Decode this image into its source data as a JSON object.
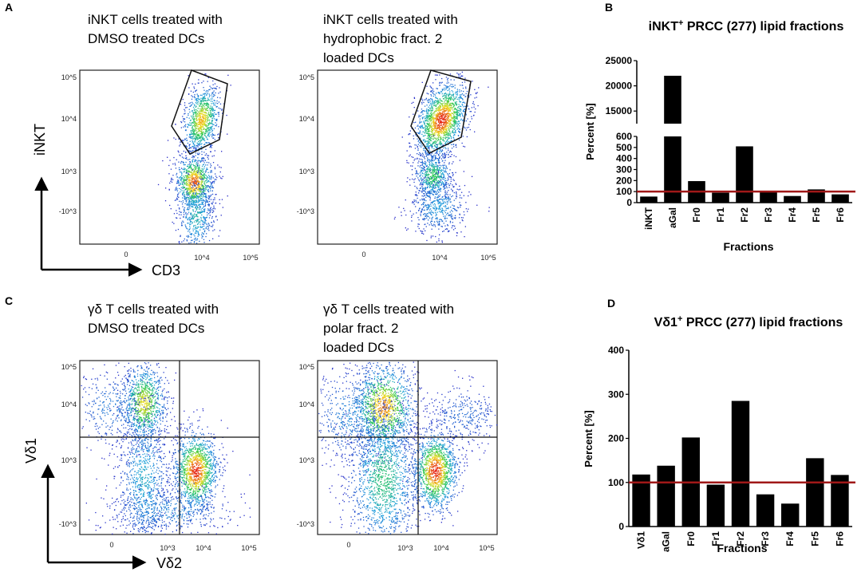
{
  "panels": {
    "a": {
      "letter": "A",
      "left_title": [
        "iNKT cells treated with",
        "DMSO treated DCs"
      ],
      "right_title": [
        "iNKT cells treated with",
        "hydrophobic fract. 2",
        "loaded DCs"
      ],
      "y_axis_label": "iNKT",
      "x_axis_label": "CD3",
      "y_ticks": [
        "10^5",
        "10^4",
        "10^3",
        "-10^3"
      ],
      "x_ticks": [
        "0",
        "10^4",
        "10^5"
      ]
    },
    "c": {
      "letter": "C",
      "left_title": [
        "γδ T cells treated with",
        "DMSO treated DCs"
      ],
      "right_title": [
        "γδ T cells treated with",
        "polar fract. 2",
        "loaded DCs"
      ],
      "y_axis_label": "Vδ1",
      "x_axis_label": "Vδ2",
      "y_ticks": [
        "10^5",
        "10^4",
        "10^3",
        "-10^3"
      ],
      "x_ticks": [
        "0",
        "10^3",
        "10^4",
        "10^5"
      ]
    }
  },
  "chart_data": [
    {
      "id": "B",
      "type": "bar",
      "letter": "B",
      "title_main": "iNKT",
      "title_sup": "+",
      "title_rest": " PRCC (277) lipid fractions",
      "xlabel": "Fractions",
      "ylabel": "Percent [%]",
      "categories": [
        "iNKT",
        "aGal",
        "Fr0",
        "Fr1",
        "Fr2",
        "Fr3",
        "Fr4",
        "Fr5",
        "Fr6"
      ],
      "values": [
        55,
        22000,
        195,
        90,
        510,
        95,
        60,
        120,
        75
      ],
      "broken_axis": true,
      "lower_ylim": [
        0,
        600
      ],
      "lower_ticks": [
        "0",
        "100",
        "200",
        "300",
        "400",
        "500",
        "600"
      ],
      "upper_ylim": [
        12500,
        25000
      ],
      "upper_ticks": [
        "15000",
        "20000",
        "25000"
      ],
      "reference_line": 100,
      "reference_color": "#a01818"
    },
    {
      "id": "D",
      "type": "bar",
      "letter": "D",
      "title_main": "Vδ1",
      "title_sup": "+",
      "title_rest": " PRCC (277) lipid fractions",
      "xlabel": "Fractions",
      "ylabel": "Percent [%]",
      "categories": [
        "Vδ1",
        "aGal",
        "Fr0",
        "Fr1",
        "Fr2",
        "Fr3",
        "Fr4",
        "Fr5",
        "Fr6"
      ],
      "values": [
        118,
        138,
        202,
        95,
        285,
        73,
        52,
        155,
        117
      ],
      "ylim": [
        0,
        400
      ],
      "y_ticks": [
        "0",
        "100",
        "200",
        "300",
        "400"
      ],
      "reference_line": 100,
      "reference_color": "#a01818"
    }
  ]
}
